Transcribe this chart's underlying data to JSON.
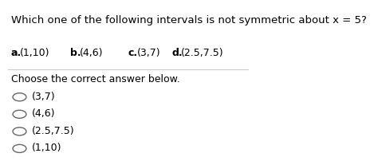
{
  "question": "Which one of the following intervals is not symmetric about x = 5?",
  "options_line": [
    {
      "label": "a.",
      "text": "(1,10)"
    },
    {
      "label": "b.",
      "text": "(4,6)"
    },
    {
      "label": "c.",
      "text": "(3,7)"
    },
    {
      "label": "d.",
      "text": "(2.5,7.5)"
    }
  ],
  "instruction": "Choose the correct answer below.",
  "answers": [
    "(3,7)",
    "(4,6)",
    "(2.5,7.5)",
    "(1,10)"
  ],
  "bg_color": "#ffffff",
  "text_color": "#000000",
  "circle_color": "#666666",
  "font_size_question": 9.5,
  "font_size_options": 9.0,
  "font_size_answers": 9.0
}
